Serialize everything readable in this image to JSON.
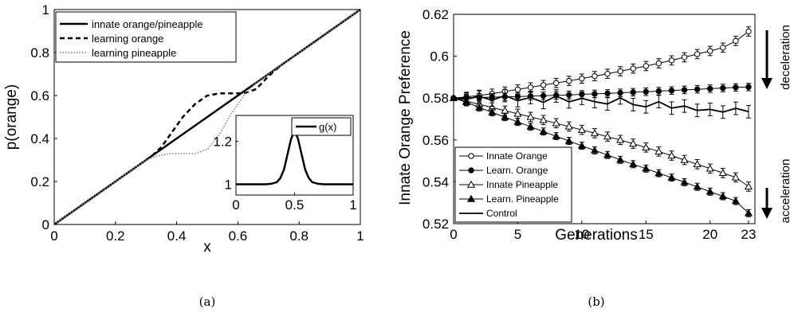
{
  "colors": {
    "line": "#000000",
    "dotted": "#8c8c8c",
    "background": "#ffffff"
  },
  "captions": {
    "a": "(a)",
    "b": "(b)"
  },
  "chart_data": [
    {
      "type": "line",
      "panel": "a",
      "xlabel": "x",
      "ylabel": "p(orange)",
      "xlim": [
        0,
        1
      ],
      "ylim": [
        0,
        1
      ],
      "xticks": [
        "0",
        "0.2",
        "0.4",
        "0.6",
        "0.8",
        "1"
      ],
      "yticks": [
        "0",
        "0.2",
        "0.4",
        "0.6",
        "0.8",
        "1"
      ],
      "legend_position": "top-left",
      "series": [
        {
          "name": "innate orange/pineapple",
          "style": "solid",
          "x": [
            0,
            1
          ],
          "y": [
            0,
            1
          ]
        },
        {
          "name": "learning orange",
          "style": "dashed",
          "x": [
            0,
            0.32,
            0.35,
            0.38,
            0.42,
            0.46,
            0.5,
            0.54,
            0.58,
            0.62,
            0.66,
            0.7,
            0.74,
            1
          ],
          "y": [
            0,
            0.32,
            0.36,
            0.42,
            0.5,
            0.56,
            0.6,
            0.61,
            0.61,
            0.61,
            0.63,
            0.69,
            0.74,
            1
          ]
        },
        {
          "name": "learning pineapple",
          "style": "dotted",
          "x": [
            0,
            0.3,
            0.34,
            0.38,
            0.42,
            0.46,
            0.5,
            0.54,
            0.58,
            0.62,
            0.66,
            0.7,
            1
          ],
          "y": [
            0,
            0.3,
            0.32,
            0.33,
            0.33,
            0.33,
            0.35,
            0.42,
            0.52,
            0.6,
            0.66,
            0.7,
            1
          ]
        }
      ],
      "inset": {
        "xlim": [
          0,
          1
        ],
        "ylim": [
          0.95,
          1.32
        ],
        "xticks": [
          "0",
          "0.5",
          "1"
        ],
        "yticks": [
          "1",
          "1.2"
        ],
        "legend": "g(x)",
        "series": {
          "name": "g(x)",
          "x": [
            0,
            0.25,
            0.3,
            0.35,
            0.38,
            0.41,
            0.44,
            0.47,
            0.5,
            0.53,
            0.56,
            0.59,
            0.62,
            0.65,
            0.7,
            0.75,
            1
          ],
          "y": [
            1,
            1,
            1.002,
            1.01,
            1.03,
            1.07,
            1.14,
            1.21,
            1.25,
            1.21,
            1.14,
            1.07,
            1.03,
            1.01,
            1.002,
            1,
            1
          ]
        }
      }
    },
    {
      "type": "line",
      "panel": "b",
      "xlabel": "Generations",
      "ylabel": "Innate Orange Preference",
      "xlim": [
        0,
        23.5
      ],
      "ylim": [
        0.52,
        0.62
      ],
      "xticks": [
        0,
        5,
        10,
        15,
        20,
        23
      ],
      "yticks": [
        "0.52",
        "0.54",
        "0.56",
        "0.58",
        "0.6",
        "0.62"
      ],
      "legend_position": "bottom-left",
      "annotations": {
        "top": "deceleration",
        "bottom": "acceleration"
      },
      "series": [
        {
          "name": "Innate Orange",
          "marker": "open-circle",
          "values": [
            0.58,
            0.5806,
            0.5812,
            0.5821,
            0.5831,
            0.5841,
            0.5851,
            0.5862,
            0.5872,
            0.5882,
            0.5893,
            0.5905,
            0.5916,
            0.5928,
            0.5941,
            0.5953,
            0.5966,
            0.598,
            0.5995,
            0.601,
            0.6025,
            0.6041,
            0.6073,
            0.6118
          ],
          "err": 0.0022
        },
        {
          "name": "Learn. Orange",
          "marker": "filled-circle",
          "values": [
            0.58,
            0.5801,
            0.5803,
            0.5804,
            0.5806,
            0.5807,
            0.5809,
            0.5811,
            0.5813,
            0.5815,
            0.5818,
            0.582,
            0.5822,
            0.5825,
            0.5828,
            0.583,
            0.5833,
            0.5836,
            0.5839,
            0.5842,
            0.5845,
            0.5848,
            0.5851,
            0.5853
          ],
          "err": 0.0018
        },
        {
          "name": "Innate Pineapple",
          "marker": "open-triangle",
          "values": [
            0.58,
            0.5785,
            0.577,
            0.5755,
            0.574,
            0.5725,
            0.571,
            0.5695,
            0.568,
            0.5664,
            0.5648,
            0.5632,
            0.5616,
            0.56,
            0.5582,
            0.5564,
            0.5545,
            0.5525,
            0.5504,
            0.5484,
            0.5463,
            0.5442,
            0.5421,
            0.5377
          ],
          "err": 0.0022
        },
        {
          "name": "Learn. Pineapple",
          "marker": "filled-triangle",
          "values": [
            0.58,
            0.578,
            0.5755,
            0.5732,
            0.5709,
            0.5686,
            0.5663,
            0.564,
            0.5618,
            0.5595,
            0.5572,
            0.555,
            0.5528,
            0.5505,
            0.5484,
            0.5463,
            0.5441,
            0.542,
            0.5398,
            0.5376,
            0.5353,
            0.5331,
            0.5308,
            0.525
          ],
          "err": 0.0017
        },
        {
          "name": "Control",
          "marker": "none",
          "values": [
            0.58,
            0.5795,
            0.5808,
            0.579,
            0.5812,
            0.5788,
            0.5803,
            0.5779,
            0.581,
            0.5782,
            0.5799,
            0.5783,
            0.5772,
            0.5801,
            0.5769,
            0.5758,
            0.5783,
            0.5752,
            0.5762,
            0.5741,
            0.5746,
            0.5733,
            0.5751,
            0.5735
          ],
          "err": 0.003
        }
      ]
    }
  ]
}
